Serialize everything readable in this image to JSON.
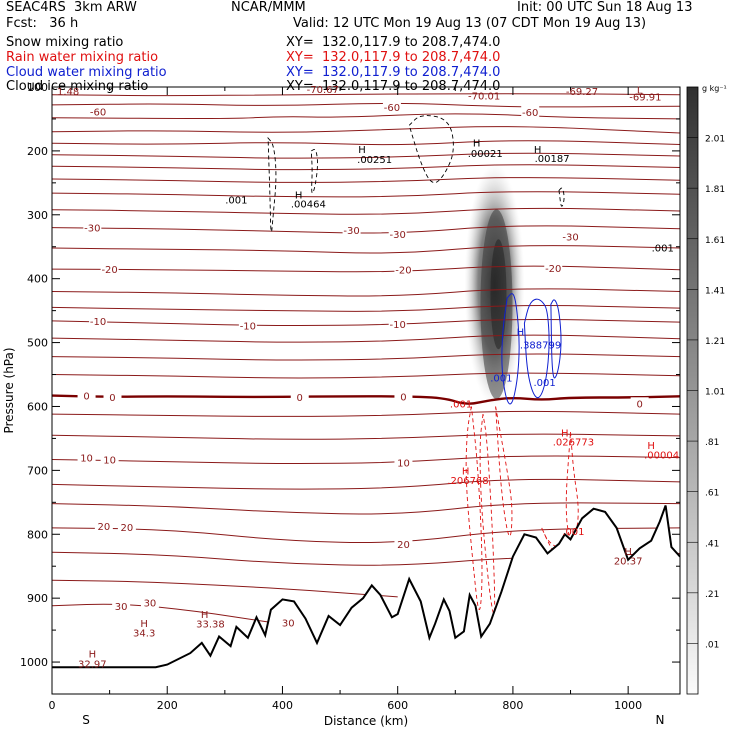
{
  "header": {
    "left1": "SEAC4RS  3km ARW",
    "left2": "Fcst:   36 h",
    "center1": "NCAR/MMM",
    "init": "Init: 00 UTC Sun 18 Aug 13",
    "valid": "Valid: 12 UTC Mon 19 Aug 13 (07 CDT Mon 19 Aug 13)"
  },
  "fields": [
    {
      "label": "Snow mixing ratio",
      "xy": "XY=  132.0,117.9 to 208.7,474.0",
      "color": "#000000"
    },
    {
      "label": "Rain water mixing ratio",
      "xy": "XY=  132.0,117.9 to 208.7,474.0",
      "color": "#e01010"
    },
    {
      "label": "Cloud water mixing ratio",
      "xy": "XY=  132.0,117.9 to 208.7,474.0",
      "color": "#1020d0"
    },
    {
      "label": "Cloud ice mixing ratio",
      "xy": "XY=  132.0,117.9 to 208.7,474.0",
      "color": "#000000"
    }
  ],
  "chart_data": {
    "type": "cross-section",
    "xlabel": "Distance (km)",
    "ylabel": "Pressure (hPa)",
    "xlim": [
      0,
      1090
    ],
    "ylim": [
      1050,
      100
    ],
    "x_ticks": [
      0,
      200,
      400,
      600,
      800,
      1000
    ],
    "y_ticks": [
      200,
      300,
      400,
      500,
      600,
      700,
      800,
      900,
      1000
    ],
    "y_top_label": "100",
    "x_end_labels": {
      "left": "S",
      "right": "N"
    },
    "colorbar": {
      "unit": "g kg⁻¹",
      "levels": [
        "2.01",
        "1.81",
        "1.61",
        "1.41",
        "1.21",
        "1.01",
        ".81",
        ".61",
        ".41",
        ".21",
        ".01"
      ]
    },
    "isotherm_color": "#8b1a1a",
    "isotherm_labels": [
      {
        "text": "-60",
        "x": 80,
        "p": 138
      },
      {
        "text": "-60",
        "x": 590,
        "p": 131
      },
      {
        "text": "-60",
        "x": 830,
        "p": 139
      },
      {
        "text": "-30",
        "x": 70,
        "p": 320
      },
      {
        "text": "-30",
        "x": 520,
        "p": 324
      },
      {
        "text": "-30",
        "x": 600,
        "p": 330
      },
      {
        "text": "-30",
        "x": 900,
        "p": 334
      },
      {
        "text": "-20",
        "x": 100,
        "p": 385
      },
      {
        "text": "-20",
        "x": 610,
        "p": 386
      },
      {
        "text": "-20",
        "x": 870,
        "p": 383
      },
      {
        "text": "-10",
        "x": 80,
        "p": 466
      },
      {
        "text": "-10",
        "x": 340,
        "p": 473
      },
      {
        "text": "-10",
        "x": 600,
        "p": 471
      },
      {
        "text": "0",
        "x": 60,
        "p": 583
      },
      {
        "text": "0",
        "x": 105,
        "p": 585
      },
      {
        "text": "0",
        "x": 430,
        "p": 585
      },
      {
        "text": "0",
        "x": 610,
        "p": 584
      },
      {
        "text": "0",
        "x": 1020,
        "p": 595
      },
      {
        "text": "10",
        "x": 60,
        "p": 680
      },
      {
        "text": "10",
        "x": 100,
        "p": 683
      },
      {
        "text": "10",
        "x": 610,
        "p": 688
      },
      {
        "text": "20",
        "x": 90,
        "p": 787
      },
      {
        "text": "20",
        "x": 130,
        "p": 789
      },
      {
        "text": "20",
        "x": 610,
        "p": 815
      },
      {
        "text": "30",
        "x": 120,
        "p": 912
      },
      {
        "text": "30",
        "x": 170,
        "p": 907
      },
      {
        "text": "30",
        "x": 410,
        "p": 938
      }
    ],
    "temperature_markers": [
      {
        "text": "1.48",
        "x": 28,
        "p": 106,
        "kind": "low"
      },
      {
        "text": "-70.67",
        "x": 470,
        "p": 103,
        "kind": "low"
      },
      {
        "text": "-70.01",
        "x": 750,
        "p": 113,
        "kind": "low"
      },
      {
        "text": "-69.27",
        "x": 920,
        "p": 106,
        "kind": "low"
      },
      {
        "text": "L",
        "x": 1020,
        "p": 104,
        "kind": "low"
      },
      {
        "text": "-69.91",
        "x": 1030,
        "p": 115,
        "kind": "low"
      },
      {
        "text": "H",
        "x": 70,
        "p": 987,
        "kind": "high"
      },
      {
        "text": "32.97",
        "x": 70,
        "p": 1002,
        "kind": "high"
      },
      {
        "text": "H",
        "x": 160,
        "p": 939,
        "kind": "high"
      },
      {
        "text": "34.3",
        "x": 160,
        "p": 954,
        "kind": "high"
      },
      {
        "text": "H",
        "x": 265,
        "p": 925,
        "kind": "high"
      },
      {
        "text": "33.38",
        "x": 275,
        "p": 940,
        "kind": "high"
      },
      {
        "text": "H",
        "x": 1000,
        "p": 826,
        "kind": "high"
      },
      {
        "text": "20.37",
        "x": 1000,
        "p": 841,
        "kind": "high"
      }
    ],
    "snow_markers": [
      {
        "text": "H",
        "x": 538,
        "p": 197
      },
      {
        "text": ".00251",
        "x": 560,
        "p": 213
      },
      {
        "text": "H",
        "x": 737,
        "p": 187
      },
      {
        "text": ".00021",
        "x": 752,
        "p": 203
      },
      {
        "text": "H",
        "x": 843,
        "p": 197
      },
      {
        "text": ".00187",
        "x": 868,
        "p": 211
      },
      {
        "text": ".001",
        "x": 320,
        "p": 276
      },
      {
        "text": "H",
        "x": 428,
        "p": 268
      },
      {
        "text": ".00464",
        "x": 445,
        "p": 282
      },
      {
        "text": ".001",
        "x": 1060,
        "p": 351
      }
    ],
    "cloud_water_markers": [
      {
        "text": "H",
        "x": 813,
        "p": 483
      },
      {
        "text": ".388799",
        "x": 848,
        "p": 503
      },
      {
        "text": ".001",
        "x": 780,
        "p": 555
      },
      {
        "text": ".001",
        "x": 855,
        "p": 562
      }
    ],
    "rain_markers": [
      {
        "text": ".001",
        "x": 710,
        "p": 595
      },
      {
        "text": "H",
        "x": 718,
        "p": 700
      },
      {
        "text": ".206768",
        "x": 722,
        "p": 715
      },
      {
        "text": "H",
        "x": 890,
        "p": 641
      },
      {
        "text": ".026773",
        "x": 905,
        "p": 655
      },
      {
        "text": "H",
        "x": 1040,
        "p": 660
      },
      {
        "text": ".00004",
        "x": 1058,
        "p": 675
      },
      {
        "text": ".001",
        "x": 905,
        "p": 795
      }
    ],
    "isotherms": [
      {
        "x": [
          0,
          200,
          400,
          800,
          1090
        ],
        "p": [
          112,
          114,
          112,
          110,
          112
        ]
      },
      {
        "x": [
          0,
          200,
          380,
          600,
          800,
          1090
        ],
        "p": [
          128,
          126,
          130,
          124,
          132,
          130
        ]
      },
      {
        "x": [
          0,
          300,
          400,
          500,
          700,
          900,
          1090
        ],
        "p": [
          148,
          150,
          146,
          148,
          140,
          148,
          150
        ]
      },
      {
        "x": [
          0,
          200,
          400,
          600,
          800,
          1090
        ],
        "p": [
          170,
          168,
          172,
          166,
          160,
          172
        ]
      },
      {
        "x": [
          0,
          200,
          400,
          600,
          800,
          1090
        ],
        "p": [
          188,
          190,
          186,
          192,
          182,
          190
        ]
      },
      {
        "x": [
          0,
          200,
          400,
          600,
          800,
          1090
        ],
        "p": [
          206,
          208,
          212,
          210,
          202,
          208
        ]
      },
      {
        "x": [
          0,
          200,
          400,
          600,
          800,
          1090
        ],
        "p": [
          224,
          226,
          230,
          228,
          220,
          226
        ]
      },
      {
        "x": [
          0,
          200,
          400,
          600,
          800,
          1090
        ],
        "p": [
          244,
          246,
          250,
          248,
          240,
          246
        ]
      },
      {
        "x": [
          0,
          200,
          400,
          600,
          800,
          1090
        ],
        "p": [
          266,
          268,
          272,
          272,
          262,
          268
        ]
      },
      {
        "x": [
          0,
          200,
          400,
          600,
          800,
          1090
        ],
        "p": [
          292,
          294,
          298,
          300,
          288,
          294
        ]
      },
      {
        "x": [
          0,
          200,
          400,
          600,
          800,
          1090
        ],
        "p": [
          320,
          322,
          326,
          330,
          315,
          322
        ]
      },
      {
        "x": [
          0,
          200,
          400,
          600,
          800,
          1090
        ],
        "p": [
          352,
          354,
          356,
          362,
          346,
          352
        ]
      },
      {
        "x": [
          0,
          200,
          400,
          600,
          800,
          1090
        ],
        "p": [
          385,
          386,
          388,
          390,
          378,
          386
        ]
      },
      {
        "x": [
          0,
          200,
          400,
          600,
          800,
          1090
        ],
        "p": [
          420,
          422,
          426,
          428,
          414,
          420
        ]
      },
      {
        "x": [
          0,
          200,
          400,
          600,
          800,
          1090
        ],
        "p": [
          445,
          448,
          450,
          452,
          440,
          446
        ]
      },
      {
        "x": [
          0,
          200,
          400,
          600,
          800,
          1090
        ],
        "p": [
          466,
          470,
          474,
          472,
          462,
          468
        ]
      },
      {
        "x": [
          0,
          200,
          400,
          600,
          800,
          1090
        ],
        "p": [
          493,
          496,
          500,
          498,
          486,
          494
        ]
      },
      {
        "x": [
          0,
          200,
          400,
          600,
          800,
          1090
        ],
        "p": [
          522,
          524,
          528,
          526,
          516,
          522
        ]
      },
      {
        "x": [
          0,
          200,
          400,
          600,
          800,
          1090
        ],
        "p": [
          550,
          552,
          556,
          554,
          546,
          552
        ]
      },
      {
        "x": [
          0,
          200,
          400,
          600,
          800,
          1090
        ],
        "p": [
          612,
          614,
          616,
          614,
          606,
          612
        ]
      },
      {
        "x": [
          0,
          200,
          400,
          600,
          800,
          1090
        ],
        "p": [
          645,
          648,
          652,
          650,
          642,
          646
        ]
      },
      {
        "x": [
          0,
          200,
          400,
          600,
          800,
          1090
        ],
        "p": [
          683,
          686,
          690,
          688,
          676,
          680
        ]
      },
      {
        "x": [
          0,
          200,
          400,
          600,
          800,
          1090
        ],
        "p": [
          722,
          726,
          730,
          728,
          712,
          718
        ]
      },
      {
        "x": [
          0,
          200,
          400,
          600,
          800,
          1090
        ],
        "p": [
          752,
          756,
          766,
          770,
          750,
          752
        ]
      },
      {
        "x": [
          0,
          200,
          400,
          600,
          800,
          1090
        ],
        "p": [
          790,
          792,
          810,
          815,
          792,
          790
        ]
      },
      {
        "x": [
          0,
          200,
          400,
          600,
          800,
          1090
        ],
        "p": [
          828,
          832,
          846,
          850,
          836,
          830
        ]
      },
      {
        "x": [
          0,
          150,
          300,
          450,
          600
        ],
        "p": [
          872,
          874,
          880,
          888,
          898
        ]
      },
      {
        "x": [
          0,
          120,
          250,
          380
        ],
        "p": [
          912,
          908,
          920,
          938
        ]
      }
    ],
    "freezing_line": {
      "x": [
        0,
        100,
        200,
        300,
        400,
        500,
        600,
        680,
        720,
        760,
        800,
        850,
        900,
        1000,
        1090
      ],
      "p": [
        583,
        585,
        584,
        585,
        585,
        584,
        584,
        586,
        598,
        590,
        586,
        590,
        586,
        586,
        584
      ]
    },
    "terrain": {
      "x": [
        0,
        180,
        200,
        240,
        260,
        275,
        290,
        310,
        320,
        340,
        355,
        370,
        380,
        400,
        420,
        440,
        460,
        480,
        500,
        520,
        540,
        555,
        570,
        590,
        600,
        620,
        640,
        655,
        665,
        680,
        690,
        700,
        715,
        725,
        735,
        745,
        760,
        780,
        800,
        820,
        840,
        860,
        880,
        890,
        900,
        920,
        940,
        960,
        980,
        1000,
        1020,
        1040,
        1055,
        1065,
        1075,
        1090
      ],
      "p": [
        1008,
        1008,
        1004,
        986,
        970,
        990,
        960,
        975,
        945,
        962,
        930,
        958,
        918,
        902,
        905,
        932,
        970,
        928,
        942,
        915,
        900,
        880,
        895,
        930,
        925,
        870,
        905,
        962,
        940,
        902,
        920,
        962,
        952,
        895,
        912,
        960,
        940,
        890,
        835,
        800,
        805,
        830,
        815,
        800,
        808,
        775,
        760,
        765,
        790,
        840,
        822,
        810,
        780,
        755,
        820,
        835
      ]
    },
    "rain_contours": [
      {
        "x": [
          728,
          720,
          718,
          730,
          742,
          748,
          740,
          728
        ],
        "p": [
          600,
          640,
          720,
          840,
          940,
          860,
          700,
          600
        ]
      },
      {
        "x": [
          748,
          742,
          745,
          760,
          770,
          765,
          755,
          748
        ],
        "p": [
          612,
          660,
          760,
          900,
          940,
          800,
          650,
          612
        ]
      },
      {
        "x": [
          770,
          778,
          790,
          800,
          795,
          780,
          770
        ],
        "p": [
          600,
          640,
          700,
          760,
          820,
          740,
          600
        ]
      },
      {
        "x": [
          900,
          905,
          915,
          910,
          900,
          890,
          900
        ],
        "p": [
          640,
          700,
          760,
          800,
          820,
          760,
          640
        ]
      },
      {
        "x": [
          850,
          860,
          875,
          890,
          880,
          865,
          850
        ],
        "p": [
          790,
          810,
          820,
          830,
          840,
          820,
          790
        ]
      }
    ],
    "cloud_water_contours": [
      {
        "x": [
          790,
          800,
          806,
          812,
          808,
          798,
          788,
          780,
          782,
          790
        ],
        "p": [
          430,
          420,
          440,
          500,
          560,
          600,
          590,
          540,
          480,
          430
        ]
      },
      {
        "x": [
          820,
          828,
          840,
          852,
          860,
          864,
          858,
          846,
          834,
          824,
          820
        ],
        "p": [
          470,
          440,
          430,
          436,
          450,
          500,
          560,
          590,
          580,
          540,
          470
        ]
      },
      {
        "x": [
          866,
          872,
          880,
          885,
          878,
          868,
          866
        ],
        "p": [
          440,
          430,
          448,
          500,
          550,
          560,
          440
        ]
      }
    ],
    "snow_contours": [
      {
        "x": [
          375,
          385,
          390,
          384,
          380,
          378,
          375
        ],
        "p": [
          180,
          190,
          240,
          300,
          340,
          260,
          180
        ]
      },
      {
        "x": [
          450,
          458,
          462,
          456,
          450,
          452,
          450
        ],
        "p": [
          200,
          196,
          220,
          260,
          270,
          230,
          200
        ]
      },
      {
        "x": [
          620,
          640,
          690,
          700,
          680,
          660,
          640,
          620
        ],
        "p": [
          160,
          142,
          150,
          200,
          240,
          255,
          220,
          160
        ]
      },
      {
        "x": [
          880,
          886,
          890,
          884,
          880
        ],
        "p": [
          262,
          256,
          275,
          292,
          262
        ]
      }
    ],
    "snow_field": {
      "x_center": 768,
      "p_top": 220,
      "p_bottom": 600,
      "max_value": 1.2,
      "max_at_p": 440
    }
  }
}
